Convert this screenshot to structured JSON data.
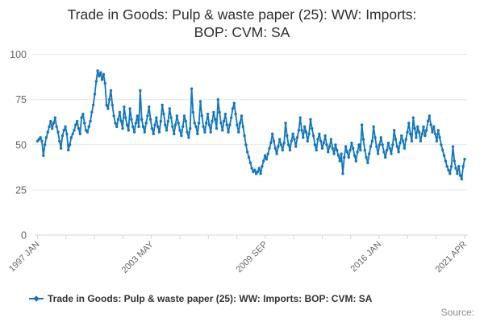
{
  "title": {
    "line1": "Trade in Goods: Pulp & waste paper (25): WW: Imports:",
    "line2": "BOP: CVM: SA"
  },
  "source": {
    "label": "Source:"
  },
  "chart_data": {
    "type": "line",
    "title": "Trade in Goods: Pulp & waste paper (25): WW: Imports: BOP: CVM: SA",
    "frequency": "monthly",
    "x_start": "1997 JAN",
    "x_end": "2021 APR",
    "x_tick_labels": [
      "1997 JAN",
      "2003 MAY",
      "2009 SEP",
      "2016 JAN",
      "2021 APR"
    ],
    "y_ticks": [
      0,
      25,
      50,
      75,
      100
    ],
    "ylim": [
      0,
      100
    ],
    "grid": "horizontal",
    "legend_position": "bottom",
    "line_color": "#1276bd",
    "grid_color": "#e6e6e6",
    "axis_color": "#ccd6eb",
    "axis_label_color": "#666666",
    "series": [
      {
        "name": "Trade in Goods: Pulp & waste paper (25): WW: Imports: BOP: CVM: SA",
        "values": [
          52,
          53,
          54,
          52,
          44,
          50,
          54,
          57,
          60,
          63,
          59,
          62,
          65,
          60,
          57,
          52,
          48,
          55,
          58,
          60,
          56,
          47,
          50,
          54,
          56,
          58,
          61,
          63,
          59,
          56,
          65,
          67,
          62,
          58,
          57,
          60,
          63,
          68,
          72,
          78,
          85,
          91,
          88,
          90,
          86,
          89,
          84,
          72,
          70,
          75,
          80,
          72,
          66,
          62,
          60,
          64,
          68,
          63,
          59,
          71,
          65,
          61,
          58,
          70,
          64,
          60,
          57,
          62,
          66,
          60,
          80,
          64,
          60,
          57,
          62,
          66,
          71,
          64,
          59,
          56,
          61,
          65,
          60,
          57,
          63,
          72,
          67,
          61,
          58,
          63,
          70,
          65,
          60,
          56,
          61,
          66,
          62,
          58,
          55,
          60,
          66,
          63,
          57,
          54,
          59,
          81,
          68,
          62,
          60,
          56,
          62,
          74,
          66,
          60,
          57,
          62,
          67,
          61,
          57,
          63,
          68,
          64,
          59,
          75,
          68,
          62,
          58,
          63,
          67,
          61,
          57,
          61,
          65,
          70,
          73,
          67,
          61,
          57,
          62,
          66,
          60,
          55,
          50,
          46,
          43,
          40,
          37,
          35,
          36,
          34,
          35,
          37,
          34,
          38,
          41,
          44,
          42,
          45,
          48,
          51,
          56,
          52,
          48,
          45,
          49,
          53,
          50,
          47,
          51,
          62,
          55,
          50,
          47,
          52,
          56,
          53,
          49,
          54,
          58,
          65,
          58,
          54,
          60,
          57,
          52,
          56,
          64,
          59,
          55,
          50,
          47,
          53,
          56,
          52,
          48,
          51,
          55,
          50,
          46,
          49,
          53,
          48,
          45,
          50,
          47,
          44,
          41,
          45,
          34,
          43,
          49,
          46,
          43,
          47,
          51,
          48,
          44,
          41,
          46,
          50,
          47,
          61,
          53,
          47,
          43,
          40,
          45,
          49,
          52,
          60,
          54,
          49,
          45,
          50,
          54,
          50,
          46,
          43,
          47,
          51,
          48,
          45,
          50,
          58,
          53,
          49,
          46,
          51,
          55,
          52,
          48,
          53,
          57,
          62,
          56,
          52,
          65,
          59,
          54,
          60,
          57,
          52,
          56,
          60,
          55,
          58,
          63,
          66,
          61,
          57,
          60,
          56,
          52,
          58,
          54,
          50,
          47,
          44,
          41,
          38,
          36,
          34,
          38,
          49,
          41,
          37,
          34,
          38,
          33,
          31,
          38,
          42
        ]
      }
    ]
  }
}
